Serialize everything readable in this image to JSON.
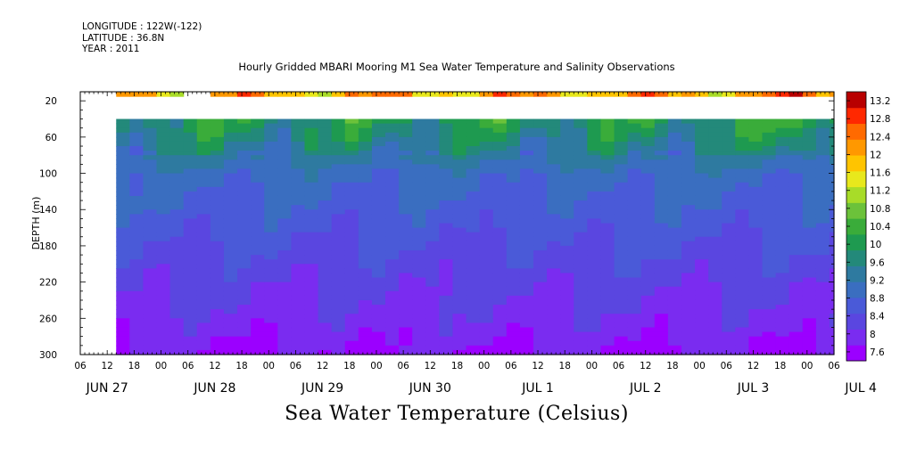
{
  "header": {
    "longitude": "LONGITUDE : 122W(-122)",
    "latitude": "LATITUDE : 36.8N",
    "year": "YEAR : 2011"
  },
  "footer_label": "Sea Water Temperature (Celsius)",
  "chart_data": {
    "type": "heatmap",
    "title": "Hourly Gridded MBARI Mooring M1 Sea Water Temperature and Salinity Observations",
    "xlabel": "",
    "ylabel": "DEPTH (m)",
    "colorbar_label": "Sea Water Temperature (Celsius)",
    "x_hour_ticks": [
      "06",
      "12",
      "18",
      "00",
      "06",
      "12",
      "18",
      "00",
      "06",
      "12",
      "18",
      "00",
      "06",
      "12",
      "18",
      "00",
      "06",
      "12",
      "18",
      "00",
      "06",
      "12",
      "18",
      "00",
      "06",
      "12",
      "18",
      "00",
      "06"
    ],
    "x_day_labels": [
      "JUN 27",
      "JUN 28",
      "JUN 29",
      "JUN 30",
      "JUL  1",
      "JUL  2",
      "JUL  3",
      "JUL  4"
    ],
    "y_ticks": [
      20,
      60,
      100,
      140,
      180,
      220,
      260,
      300
    ],
    "y_range": [
      300,
      10
    ],
    "colorbar_ticks": [
      "13.2",
      "12.8",
      "12.4",
      "12",
      "11.6",
      "11.2",
      "10.8",
      "10.4",
      "10",
      "9.6",
      "9.2",
      "8.8",
      "8.4",
      "8",
      "7.6"
    ],
    "colorbar_range": [
      7.4,
      13.4
    ],
    "data_start": "Jun 27 14:00",
    "surface_gaps": [
      [
        "Jun 28 04:00",
        "Jun 28 10:00"
      ]
    ],
    "no_data_depths_m": [
      17,
      40
    ],
    "depth_profile_c": [
      {
        "depth": 10,
        "temp": 12.2
      },
      {
        "depth": 40,
        "temp": 10.0
      },
      {
        "depth": 60,
        "temp": 9.7
      },
      {
        "depth": 100,
        "temp": 8.95
      },
      {
        "depth": 140,
        "temp": 8.7
      },
      {
        "depth": 180,
        "temp": 8.45
      },
      {
        "depth": 220,
        "temp": 8.2
      },
      {
        "depth": 260,
        "temp": 8.0
      },
      {
        "depth": 300,
        "temp": 7.7
      }
    ],
    "colors": [
      "#9b00ff",
      "#7a2cf0",
      "#5a46e0",
      "#4a5ad8",
      "#3a6ec0",
      "#2e7aa0",
      "#23897a",
      "#1e9a50",
      "#3aac3a",
      "#6cc23a",
      "#a8dc28",
      "#e8e81c",
      "#ffc400",
      "#ff9800",
      "#ff6a00",
      "#ff2800",
      "#b80000"
    ]
  }
}
